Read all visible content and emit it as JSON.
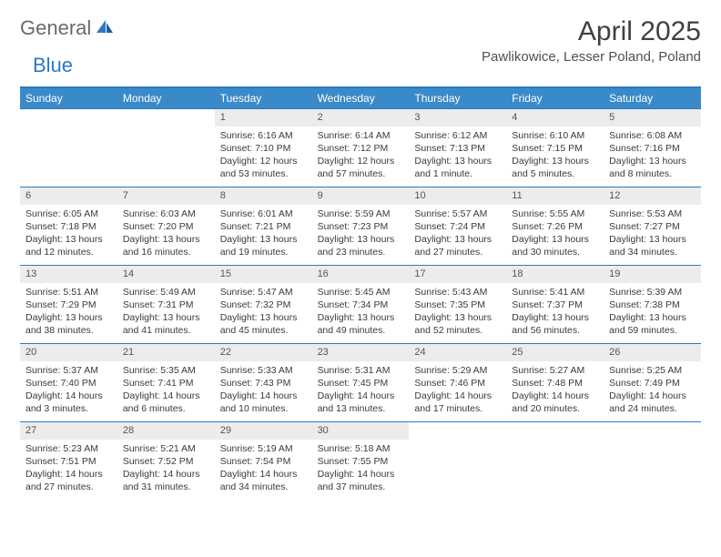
{
  "brand": {
    "part1": "General",
    "part2": "Blue"
  },
  "title": "April 2025",
  "location": "Pawlikowice, Lesser Poland, Poland",
  "colors": {
    "header_bg": "#3a8ac9",
    "header_border": "#2a7ac0",
    "daynum_bg": "#ececec",
    "text": "#3a3a3a",
    "brand_gray": "#6a6a6a",
    "brand_blue": "#2a7ac0"
  },
  "day_headers": [
    "Sunday",
    "Monday",
    "Tuesday",
    "Wednesday",
    "Thursday",
    "Friday",
    "Saturday"
  ],
  "lead_blanks": 2,
  "days": [
    {
      "n": "1",
      "sunrise": "Sunrise: 6:16 AM",
      "sunset": "Sunset: 7:10 PM",
      "daylight": "Daylight: 12 hours and 53 minutes."
    },
    {
      "n": "2",
      "sunrise": "Sunrise: 6:14 AM",
      "sunset": "Sunset: 7:12 PM",
      "daylight": "Daylight: 12 hours and 57 minutes."
    },
    {
      "n": "3",
      "sunrise": "Sunrise: 6:12 AM",
      "sunset": "Sunset: 7:13 PM",
      "daylight": "Daylight: 13 hours and 1 minute."
    },
    {
      "n": "4",
      "sunrise": "Sunrise: 6:10 AM",
      "sunset": "Sunset: 7:15 PM",
      "daylight": "Daylight: 13 hours and 5 minutes."
    },
    {
      "n": "5",
      "sunrise": "Sunrise: 6:08 AM",
      "sunset": "Sunset: 7:16 PM",
      "daylight": "Daylight: 13 hours and 8 minutes."
    },
    {
      "n": "6",
      "sunrise": "Sunrise: 6:05 AM",
      "sunset": "Sunset: 7:18 PM",
      "daylight": "Daylight: 13 hours and 12 minutes."
    },
    {
      "n": "7",
      "sunrise": "Sunrise: 6:03 AM",
      "sunset": "Sunset: 7:20 PM",
      "daylight": "Daylight: 13 hours and 16 minutes."
    },
    {
      "n": "8",
      "sunrise": "Sunrise: 6:01 AM",
      "sunset": "Sunset: 7:21 PM",
      "daylight": "Daylight: 13 hours and 19 minutes."
    },
    {
      "n": "9",
      "sunrise": "Sunrise: 5:59 AM",
      "sunset": "Sunset: 7:23 PM",
      "daylight": "Daylight: 13 hours and 23 minutes."
    },
    {
      "n": "10",
      "sunrise": "Sunrise: 5:57 AM",
      "sunset": "Sunset: 7:24 PM",
      "daylight": "Daylight: 13 hours and 27 minutes."
    },
    {
      "n": "11",
      "sunrise": "Sunrise: 5:55 AM",
      "sunset": "Sunset: 7:26 PM",
      "daylight": "Daylight: 13 hours and 30 minutes."
    },
    {
      "n": "12",
      "sunrise": "Sunrise: 5:53 AM",
      "sunset": "Sunset: 7:27 PM",
      "daylight": "Daylight: 13 hours and 34 minutes."
    },
    {
      "n": "13",
      "sunrise": "Sunrise: 5:51 AM",
      "sunset": "Sunset: 7:29 PM",
      "daylight": "Daylight: 13 hours and 38 minutes."
    },
    {
      "n": "14",
      "sunrise": "Sunrise: 5:49 AM",
      "sunset": "Sunset: 7:31 PM",
      "daylight": "Daylight: 13 hours and 41 minutes."
    },
    {
      "n": "15",
      "sunrise": "Sunrise: 5:47 AM",
      "sunset": "Sunset: 7:32 PM",
      "daylight": "Daylight: 13 hours and 45 minutes."
    },
    {
      "n": "16",
      "sunrise": "Sunrise: 5:45 AM",
      "sunset": "Sunset: 7:34 PM",
      "daylight": "Daylight: 13 hours and 49 minutes."
    },
    {
      "n": "17",
      "sunrise": "Sunrise: 5:43 AM",
      "sunset": "Sunset: 7:35 PM",
      "daylight": "Daylight: 13 hours and 52 minutes."
    },
    {
      "n": "18",
      "sunrise": "Sunrise: 5:41 AM",
      "sunset": "Sunset: 7:37 PM",
      "daylight": "Daylight: 13 hours and 56 minutes."
    },
    {
      "n": "19",
      "sunrise": "Sunrise: 5:39 AM",
      "sunset": "Sunset: 7:38 PM",
      "daylight": "Daylight: 13 hours and 59 minutes."
    },
    {
      "n": "20",
      "sunrise": "Sunrise: 5:37 AM",
      "sunset": "Sunset: 7:40 PM",
      "daylight": "Daylight: 14 hours and 3 minutes."
    },
    {
      "n": "21",
      "sunrise": "Sunrise: 5:35 AM",
      "sunset": "Sunset: 7:41 PM",
      "daylight": "Daylight: 14 hours and 6 minutes."
    },
    {
      "n": "22",
      "sunrise": "Sunrise: 5:33 AM",
      "sunset": "Sunset: 7:43 PM",
      "daylight": "Daylight: 14 hours and 10 minutes."
    },
    {
      "n": "23",
      "sunrise": "Sunrise: 5:31 AM",
      "sunset": "Sunset: 7:45 PM",
      "daylight": "Daylight: 14 hours and 13 minutes."
    },
    {
      "n": "24",
      "sunrise": "Sunrise: 5:29 AM",
      "sunset": "Sunset: 7:46 PM",
      "daylight": "Daylight: 14 hours and 17 minutes."
    },
    {
      "n": "25",
      "sunrise": "Sunrise: 5:27 AM",
      "sunset": "Sunset: 7:48 PM",
      "daylight": "Daylight: 14 hours and 20 minutes."
    },
    {
      "n": "26",
      "sunrise": "Sunrise: 5:25 AM",
      "sunset": "Sunset: 7:49 PM",
      "daylight": "Daylight: 14 hours and 24 minutes."
    },
    {
      "n": "27",
      "sunrise": "Sunrise: 5:23 AM",
      "sunset": "Sunset: 7:51 PM",
      "daylight": "Daylight: 14 hours and 27 minutes."
    },
    {
      "n": "28",
      "sunrise": "Sunrise: 5:21 AM",
      "sunset": "Sunset: 7:52 PM",
      "daylight": "Daylight: 14 hours and 31 minutes."
    },
    {
      "n": "29",
      "sunrise": "Sunrise: 5:19 AM",
      "sunset": "Sunset: 7:54 PM",
      "daylight": "Daylight: 14 hours and 34 minutes."
    },
    {
      "n": "30",
      "sunrise": "Sunrise: 5:18 AM",
      "sunset": "Sunset: 7:55 PM",
      "daylight": "Daylight: 14 hours and 37 minutes."
    }
  ]
}
